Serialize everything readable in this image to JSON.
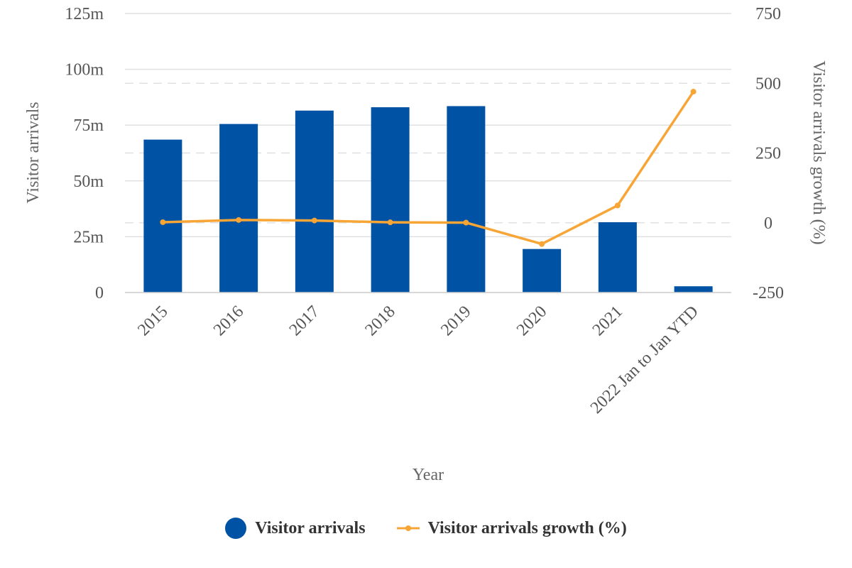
{
  "chart_data": {
    "type": "bar",
    "categories": [
      "2015",
      "2016",
      "2017",
      "2018",
      "2019",
      "2020",
      "2021",
      "2022 Jan to Jan YTD"
    ],
    "series": [
      {
        "name": "Visitor arrivals",
        "type": "bar",
        "axis": "left",
        "color": "#0052a5",
        "values": [
          68.5,
          75.5,
          81.5,
          83,
          83.5,
          19.5,
          31.5,
          2.8
        ]
      },
      {
        "name": "Visitor arrivals growth (%)",
        "type": "line",
        "axis": "right",
        "color": "#f7a535",
        "values": [
          2,
          10,
          8,
          1.5,
          0.5,
          -76,
          62,
          470
        ]
      }
    ],
    "xlabel": "Year",
    "ylabel_left": "Visitor arrivals",
    "ylabel_right": "Visitor arrivals growth (%)",
    "ylim_left": [
      0,
      125
    ],
    "yticks_left": [
      "0",
      "25m",
      "50m",
      "75m",
      "100m",
      "125m"
    ],
    "ylim_right": [
      -250,
      750
    ],
    "yticks_right": [
      "-250",
      "0",
      "250",
      "500",
      "750"
    ],
    "yticks_right_values": [
      -250,
      0,
      250,
      500,
      750
    ],
    "grid": true,
    "legend_position": "bottom-center"
  }
}
